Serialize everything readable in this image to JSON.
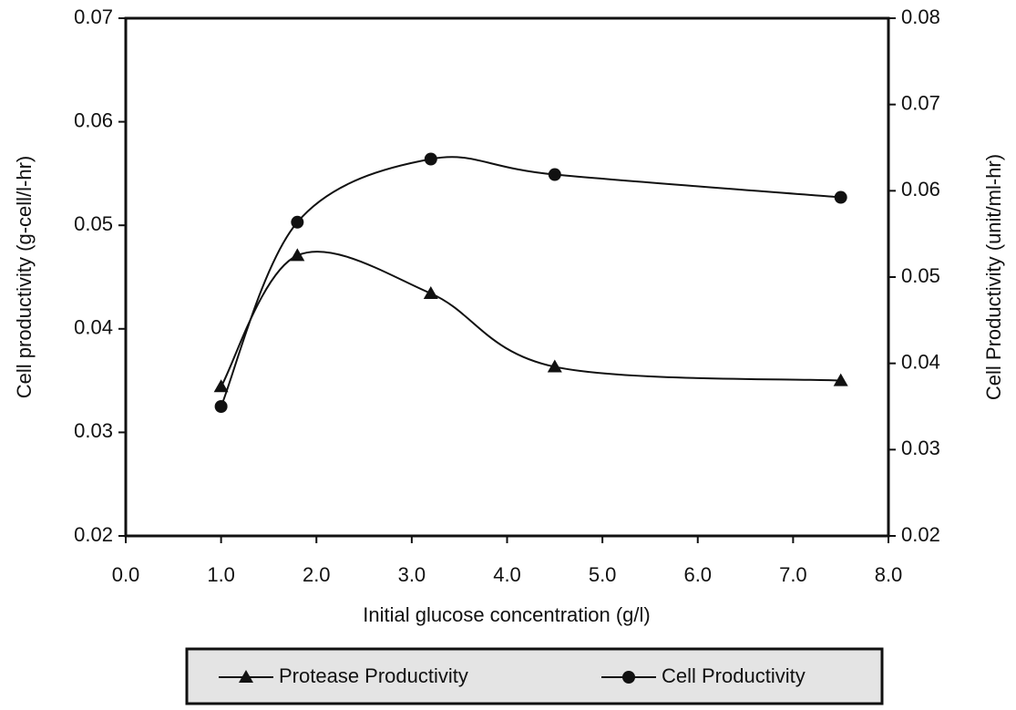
{
  "chart_data": {
    "type": "line",
    "x_label": "Initial glucose concentration (g/l)",
    "y_label": "Cell productivity (g-cell/l-hr)",
    "y2_label": "Cell Productivity (unit/ml-hr)",
    "x": [
      1.0,
      1.8,
      3.2,
      4.5,
      7.5
    ],
    "series": [
      {
        "name": "Protease Productivity",
        "color": "#111111",
        "marker": "triangle",
        "axis": "y2",
        "values": [
          0.0373,
          0.0525,
          0.0481,
          0.0396,
          0.038
        ]
      },
      {
        "name": "Cell Productivity",
        "color": "#111111",
        "marker": "circle",
        "values": [
          0.0325,
          0.0503,
          0.0564,
          0.0549,
          0.0527
        ]
      }
    ],
    "xlim": [
      0,
      8
    ],
    "xticks": [
      {
        "value": 0,
        "label": "0.0"
      },
      {
        "value": 1,
        "label": "1.0"
      },
      {
        "value": 2,
        "label": "2.0"
      },
      {
        "value": 3,
        "label": "3.0"
      },
      {
        "value": 4,
        "label": "4.0"
      },
      {
        "value": 5,
        "label": "5.0"
      },
      {
        "value": 6,
        "label": "6.0"
      },
      {
        "value": 7,
        "label": "7.0"
      },
      {
        "value": 8,
        "label": "8.0"
      }
    ],
    "ylim": [
      0.02,
      0.07
    ],
    "yticks": [
      0.02,
      0.03,
      0.04,
      0.05,
      0.06,
      0.07
    ],
    "y2lim": [
      0.02,
      0.08
    ],
    "y2ticks": [
      0.02,
      0.03,
      0.04,
      0.05,
      0.06,
      0.07,
      0.08
    ],
    "legend": "bottom"
  }
}
